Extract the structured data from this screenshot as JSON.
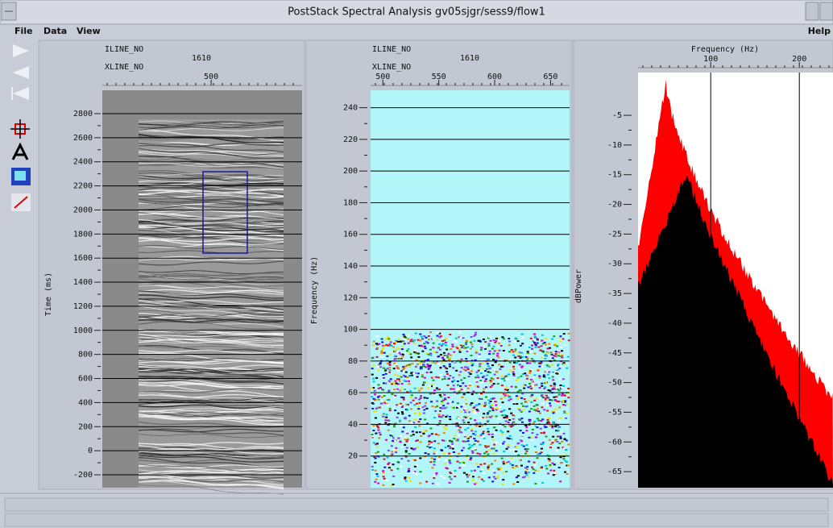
{
  "window": {
    "title": "PostStack Spectral Analysis gv05sjgr/sess9/flow1"
  },
  "menu": {
    "items": [
      "File",
      "Data",
      "View"
    ],
    "help": "Help"
  },
  "seismic_panel": {
    "iline_label": "ILINE_NO",
    "iline": 1610,
    "xline_label": "XLINE_NO",
    "xlim": [
      439,
      551
    ],
    "xticks": [
      500
    ],
    "ylabel": "Time (ms)",
    "ylim": [
      -307,
      2994
    ],
    "yticks": [
      -200,
      0,
      200,
      400,
      600,
      800,
      1000,
      1200,
      1400,
      1600,
      1800,
      2000,
      2200,
      2400,
      2600,
      2800
    ]
  },
  "spectrum_panel": {
    "iline_label": "ILINE_NO",
    "iline": 1610,
    "xline_label": "XLINE_NO",
    "xlim": [
      489,
      667
    ],
    "xticks": [
      500,
      550,
      600,
      650
    ],
    "ylabel": "Frequency (Hz)",
    "ylim": [
      0,
      251
    ],
    "yticks": [
      20,
      40,
      60,
      80,
      100,
      120,
      140,
      160,
      180,
      200,
      220,
      240
    ]
  },
  "power_panel": {
    "xlabel": "Frequency (Hz)",
    "xlim": [
      18,
      238
    ],
    "xticks": [
      100,
      200
    ],
    "ylabel": "dBPower",
    "ylim": [
      -67.7,
      2.2
    ],
    "yticks": [
      -5,
      -10,
      -15,
      -20,
      -25,
      -30,
      -35,
      -40,
      -45,
      -50,
      -55,
      -60,
      -65
    ]
  }
}
